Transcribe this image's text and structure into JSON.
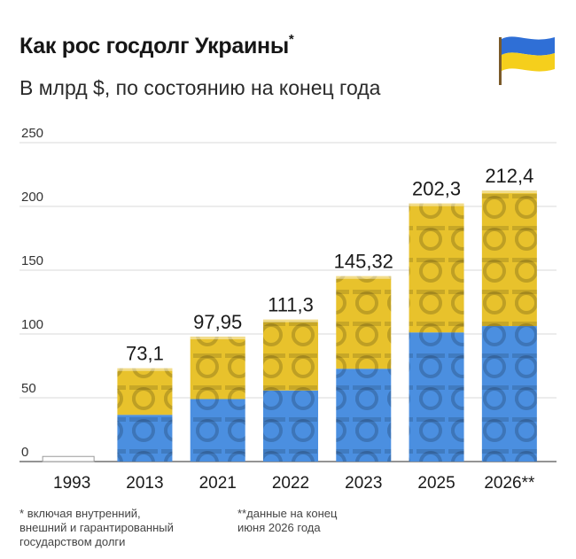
{
  "header": {
    "title": "Как рос госдолг Украины",
    "title_mark": "*",
    "subtitle": "В млрд $, по состоянию на конец года"
  },
  "flag": {
    "icon": "ukraine-flag-icon",
    "colors": [
      "#2f6fd6",
      "#f5cf1c"
    ]
  },
  "chart_data": {
    "type": "bar",
    "categories": [
      "1993",
      "2013",
      "2021",
      "2022",
      "2023",
      "2025",
      "2026**"
    ],
    "values": [
      4,
      73.1,
      97.95,
      111.3,
      145.32,
      202.3,
      212.4
    ],
    "value_labels": [
      "",
      "73,1",
      "97,95",
      "111,3",
      "145,32",
      "202,3",
      "212,4"
    ],
    "y_ticks": [
      "0",
      "50",
      "100",
      "150",
      "200",
      "250"
    ],
    "ylim": [
      0,
      250
    ],
    "grid": true,
    "bar_colors": {
      "upper": "#e8c22c",
      "lower": "#4b8fe0",
      "empty_outline": "#999999"
    }
  },
  "footnotes": [
    {
      "mark": "*",
      "text": "включая внутренний,\nвнешний и гарантированный\nгосударством долги"
    },
    {
      "mark": "**",
      "text": "данные на конец\nиюня 2026 года"
    }
  ]
}
